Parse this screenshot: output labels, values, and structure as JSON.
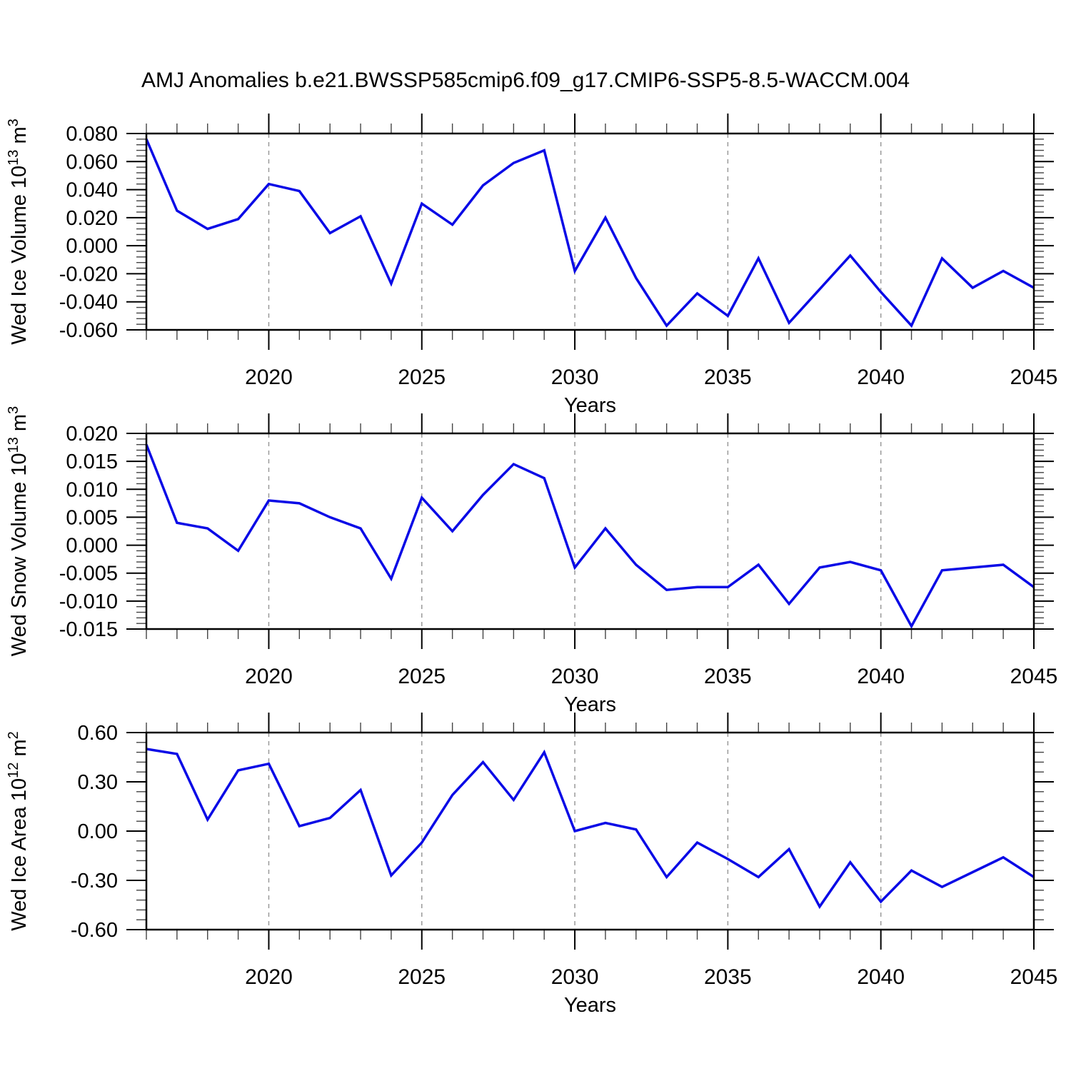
{
  "title": "AMJ Anomalies b.e21.BWSSP585cmip6.f09_g17.CMIP6-SSP5-8.5-WACCM.004",
  "line_color": "#0a0ae6",
  "grid_color": "#9a9a9a",
  "frame_color": "#000000",
  "chart_data": [
    {
      "id": "wed-ice-volume",
      "type": "line",
      "ylabel": "Wed Ice Volume 10^13 m^3",
      "ylabel_parts": [
        {
          "t": "Wed Ice Volume 10"
        },
        {
          "t": "13",
          "sup": true
        },
        {
          "t": " m"
        },
        {
          "t": "3",
          "sup": true
        }
      ],
      "xlabel": "Years",
      "xlim": [
        2016,
        2045
      ],
      "ylim": [
        -0.06,
        0.08
      ],
      "xticks": [
        2020,
        2025,
        2030,
        2035,
        2040,
        2045
      ],
      "xtick_labels": [
        "2020",
        "2025",
        "2030",
        "2035",
        "2040",
        "2045"
      ],
      "grid_x": [
        2020,
        2025,
        2030,
        2035,
        2040
      ],
      "yticks": [
        0.08,
        0.06,
        0.04,
        0.02,
        0.0,
        -0.02,
        -0.04,
        -0.06
      ],
      "ytick_labels": [
        "0.080",
        "0.060",
        "0.040",
        "0.020",
        "0.000",
        "-0.020",
        "-0.040",
        "-0.060"
      ],
      "yminor_step": 0.004,
      "xminor_step": 1,
      "x": [
        2016,
        2017,
        2018,
        2019,
        2020,
        2021,
        2022,
        2023,
        2024,
        2025,
        2026,
        2027,
        2028,
        2029,
        2030,
        2031,
        2032,
        2033,
        2034,
        2035,
        2036,
        2037,
        2038,
        2039,
        2040,
        2041,
        2042,
        2043,
        2044,
        2045
      ],
      "values": [
        0.076,
        0.025,
        0.012,
        0.019,
        0.044,
        0.039,
        0.009,
        0.021,
        -0.027,
        0.03,
        0.015,
        0.043,
        0.059,
        0.068,
        -0.018,
        0.02,
        -0.023,
        -0.057,
        -0.034,
        -0.05,
        -0.009,
        -0.055,
        -0.031,
        -0.007,
        -0.033,
        -0.057,
        -0.009,
        -0.03,
        -0.018,
        -0.03
      ]
    },
    {
      "id": "wed-snow-volume",
      "type": "line",
      "ylabel": "Wed Snow Volume 10^13 m^3",
      "ylabel_parts": [
        {
          "t": "Wed Snow Volume 10"
        },
        {
          "t": "13",
          "sup": true
        },
        {
          "t": " m"
        },
        {
          "t": "3",
          "sup": true
        }
      ],
      "xlabel": "Years",
      "xlim": [
        2016,
        2045
      ],
      "ylim": [
        -0.015,
        0.02
      ],
      "xticks": [
        2020,
        2025,
        2030,
        2035,
        2040,
        2045
      ],
      "xtick_labels": [
        "2020",
        "2025",
        "2030",
        "2035",
        "2040",
        "2045"
      ],
      "grid_x": [
        2020,
        2025,
        2030,
        2035,
        2040
      ],
      "yticks": [
        0.02,
        0.015,
        0.01,
        0.005,
        0.0,
        -0.005,
        -0.01,
        -0.015
      ],
      "ytick_labels": [
        "0.020",
        "0.015",
        "0.010",
        "0.005",
        "0.000",
        "-0.005",
        "-0.010",
        "-0.015"
      ],
      "yminor_step": 0.001,
      "xminor_step": 1,
      "x": [
        2016,
        2017,
        2018,
        2019,
        2020,
        2021,
        2022,
        2023,
        2024,
        2025,
        2026,
        2027,
        2028,
        2029,
        2030,
        2031,
        2032,
        2033,
        2034,
        2035,
        2036,
        2037,
        2038,
        2039,
        2040,
        2041,
        2042,
        2043,
        2044,
        2045
      ],
      "values": [
        0.018,
        0.004,
        0.003,
        -0.001,
        0.008,
        0.0075,
        0.005,
        0.003,
        -0.006,
        0.0085,
        0.0025,
        0.009,
        0.0145,
        0.012,
        -0.004,
        0.003,
        -0.0035,
        -0.008,
        -0.0075,
        -0.0075,
        -0.0035,
        -0.0105,
        -0.004,
        -0.003,
        -0.0045,
        -0.0145,
        -0.0045,
        -0.004,
        -0.0035,
        -0.0075
      ]
    },
    {
      "id": "wed-ice-area",
      "type": "line",
      "ylabel": "Wed Ice Area 10^12 m^2",
      "ylabel_parts": [
        {
          "t": "Wed Ice Area 10"
        },
        {
          "t": "12",
          "sup": true
        },
        {
          "t": " m"
        },
        {
          "t": "2",
          "sup": true
        }
      ],
      "xlabel": "Years",
      "xlim": [
        2016,
        2045
      ],
      "ylim": [
        -0.6,
        0.6
      ],
      "xticks": [
        2020,
        2025,
        2030,
        2035,
        2040,
        2045
      ],
      "xtick_labels": [
        "2020",
        "2025",
        "2030",
        "2035",
        "2040",
        "2045"
      ],
      "grid_x": [
        2020,
        2025,
        2030,
        2035,
        2040
      ],
      "yticks": [
        0.6,
        0.3,
        0.0,
        -0.3,
        -0.6
      ],
      "ytick_labels": [
        "0.60",
        "0.30",
        "0.00",
        "-0.30",
        "-0.60"
      ],
      "yminor_step": 0.06,
      "xminor_step": 1,
      "x": [
        2016,
        2017,
        2018,
        2019,
        2020,
        2021,
        2022,
        2023,
        2024,
        2025,
        2026,
        2027,
        2028,
        2029,
        2030,
        2031,
        2032,
        2033,
        2034,
        2035,
        2036,
        2037,
        2038,
        2039,
        2040,
        2041,
        2042,
        2043,
        2044,
        2045
      ],
      "values": [
        0.5,
        0.47,
        0.07,
        0.37,
        0.41,
        0.03,
        0.08,
        0.25,
        -0.27,
        -0.07,
        0.22,
        0.42,
        0.19,
        0.48,
        0.0,
        0.05,
        0.01,
        -0.28,
        -0.07,
        -0.17,
        -0.28,
        -0.11,
        -0.46,
        -0.19,
        -0.43,
        -0.24,
        -0.34,
        -0.25,
        -0.16,
        -0.28
      ]
    }
  ]
}
